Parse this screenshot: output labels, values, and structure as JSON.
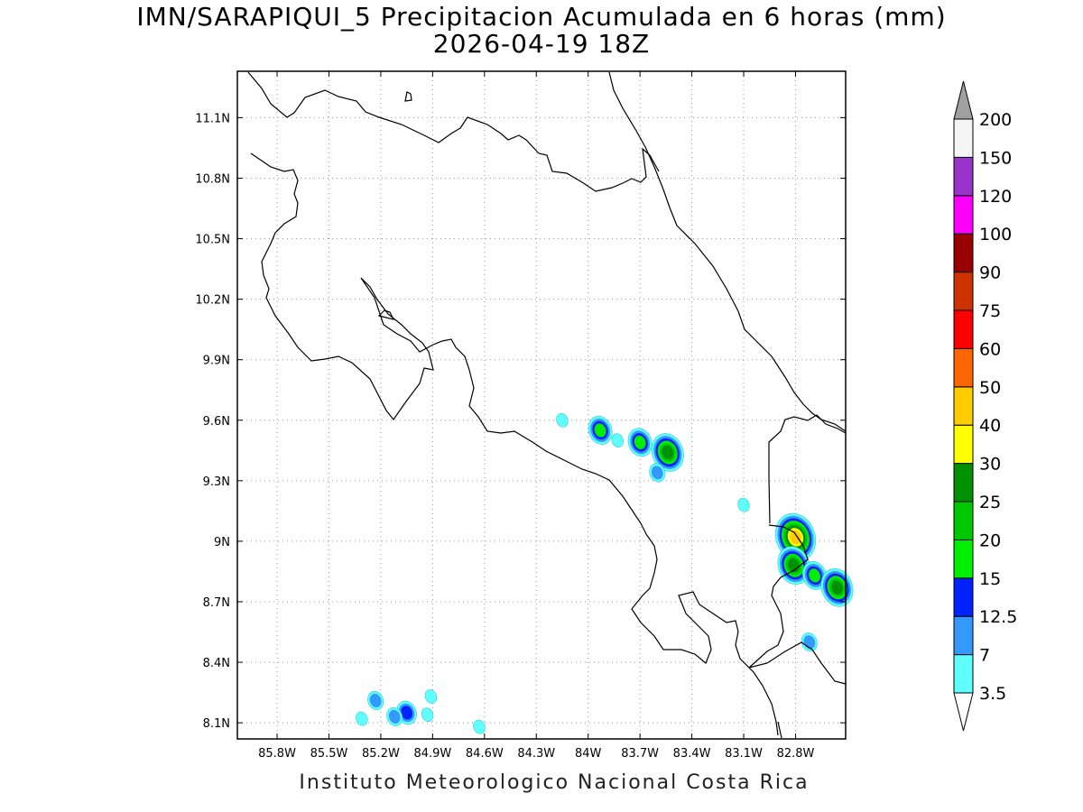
{
  "title_line1": "IMN/SARAPIQUI_5 Precipitacion Acumulada en 6 horas (mm)",
  "title_line2": "2026-04-19 18Z",
  "footer": "Instituto Meteorologico Nacional Costa Rica",
  "map": {
    "lon_range": [
      -86.03,
      -82.51
    ],
    "lat_range": [
      8.02,
      11.33
    ],
    "lon_ticks": [
      "85.8W",
      "85.5W",
      "85.2W",
      "84.9W",
      "84.6W",
      "84.3W",
      "84W",
      "83.7W",
      "83.4W",
      "83.1W",
      "82.8W"
    ],
    "lon_tick_values": [
      -85.8,
      -85.5,
      -85.2,
      -84.9,
      -84.6,
      -84.3,
      -84.0,
      -83.7,
      -83.4,
      -83.1,
      -82.8
    ],
    "lat_ticks": [
      "8.1N",
      "8.4N",
      "8.7N",
      "9N",
      "9.3N",
      "9.6N",
      "9.9N",
      "10.2N",
      "10.5N",
      "10.8N",
      "11.1N"
    ],
    "lat_tick_values": [
      8.1,
      8.4,
      8.7,
      9.0,
      9.3,
      9.6,
      9.9,
      10.2,
      10.5,
      10.8,
      11.1
    ],
    "grid": "dotted",
    "coastline_color": "#000000"
  },
  "colorbar": {
    "labels": [
      "3.5",
      "7",
      "12.5",
      "15",
      "20",
      "25",
      "30",
      "40",
      "50",
      "60",
      "75",
      "90",
      "100",
      "120",
      "150",
      "200"
    ],
    "colors": [
      "#60ffff",
      "#3399ff",
      "#0022ff",
      "#00ee00",
      "#00c800",
      "#009000",
      "#ffff00",
      "#ffcc00",
      "#ff6600",
      "#ff0000",
      "#cc3300",
      "#990000",
      "#ff00ff",
      "#9933cc",
      "#f5f5f5",
      "#a0a0a0"
    ],
    "under_color": "#ffffff",
    "over_color": "#a0a0a0"
  },
  "precip_cells": [
    {
      "lon": -83.93,
      "lat": 9.55,
      "max_mm": 15
    },
    {
      "lon": -83.7,
      "lat": 9.49,
      "max_mm": 15
    },
    {
      "lon": -83.54,
      "lat": 9.44,
      "max_mm": 25
    },
    {
      "lon": -83.6,
      "lat": 9.34,
      "max_mm": 7
    },
    {
      "lon": -83.83,
      "lat": 9.5,
      "max_mm": 3.5
    },
    {
      "lon": -84.15,
      "lat": 9.6,
      "max_mm": 3.5
    },
    {
      "lon": -83.1,
      "lat": 9.18,
      "max_mm": 3.5
    },
    {
      "lon": -82.8,
      "lat": 9.02,
      "max_mm": 40
    },
    {
      "lon": -82.81,
      "lat": 8.88,
      "max_mm": 25
    },
    {
      "lon": -82.69,
      "lat": 8.83,
      "max_mm": 15
    },
    {
      "lon": -82.56,
      "lat": 8.77,
      "max_mm": 25
    },
    {
      "lon": -82.72,
      "lat": 8.5,
      "max_mm": 7
    },
    {
      "lon": -85.23,
      "lat": 8.21,
      "max_mm": 7
    },
    {
      "lon": -85.05,
      "lat": 8.15,
      "max_mm": 12.5
    },
    {
      "lon": -85.12,
      "lat": 8.13,
      "max_mm": 7
    },
    {
      "lon": -84.91,
      "lat": 8.23,
      "max_mm": 3.5
    },
    {
      "lon": -84.93,
      "lat": 8.14,
      "max_mm": 3.5
    },
    {
      "lon": -85.31,
      "lat": 8.12,
      "max_mm": 3.5
    },
    {
      "lon": -84.63,
      "lat": 8.08,
      "max_mm": 3.5
    }
  ]
}
